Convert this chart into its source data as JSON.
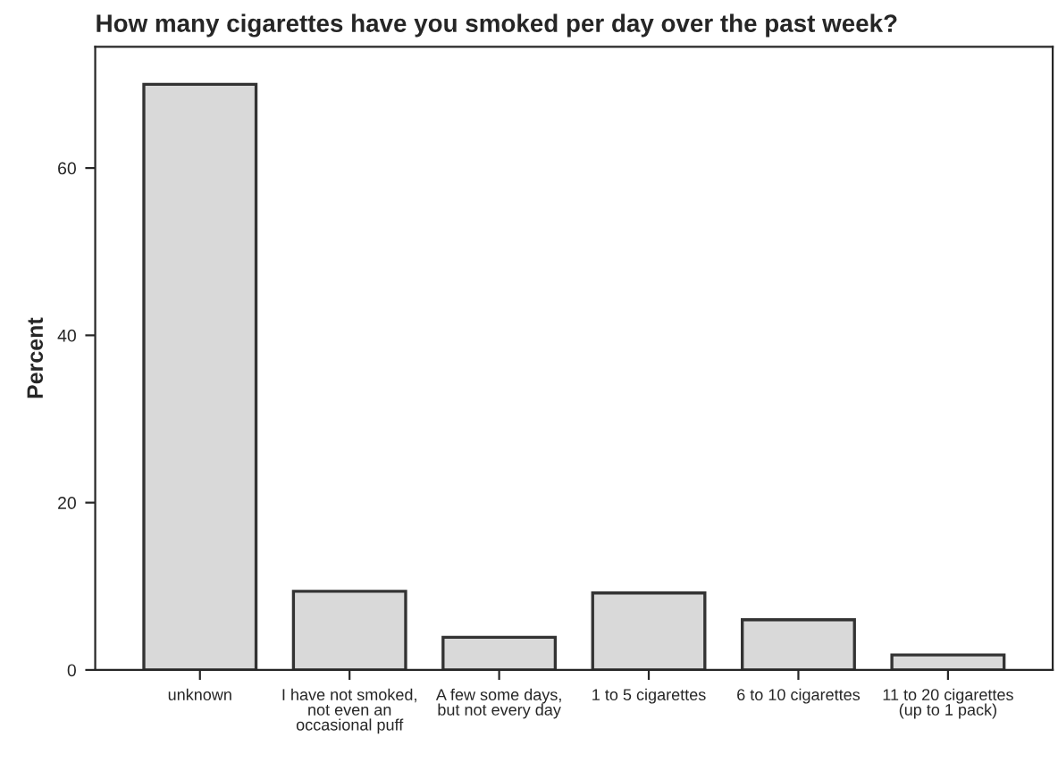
{
  "chart_data": {
    "type": "bar",
    "title": "How many cigarettes have you smoked per day over the past week?",
    "ylabel": "Percent",
    "categories": [
      "unknown",
      "I have not smoked, not even an occasional puff",
      "A few some days, but not every day",
      "1 to 5 cigarettes",
      "6 to 10 cigarettes",
      "11 to 20 cigarettes (up to 1 pack)"
    ],
    "values": [
      70,
      9.4,
      3.9,
      9.2,
      6.0,
      1.8
    ],
    "color": "#d9d9d9",
    "ylim": [
      0,
      74.5
    ],
    "yticks": [
      0,
      20,
      40,
      60
    ],
    "grid": false,
    "legend": false
  }
}
